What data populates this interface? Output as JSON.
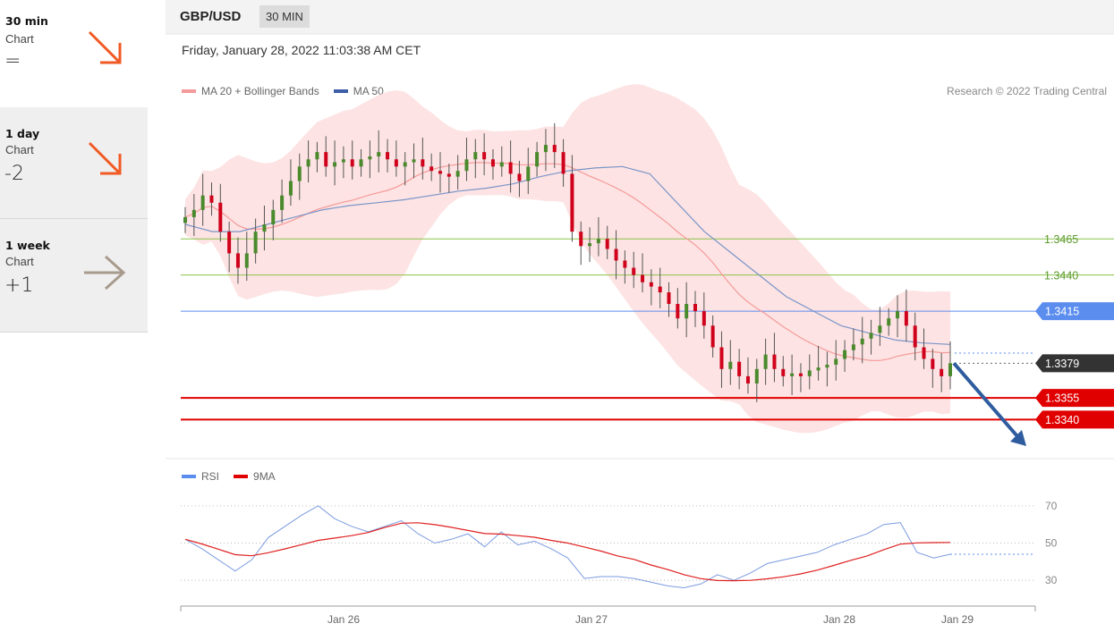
{
  "timeframes": [
    {
      "name": "30 min",
      "sub": "Chart",
      "score": "=",
      "arrow": "down",
      "arrow_color": "#f15a24"
    },
    {
      "name": "1 day",
      "sub": "Chart",
      "score": "-2",
      "arrow": "down",
      "arrow_color": "#f15a24"
    },
    {
      "name": "1 week",
      "sub": "Chart",
      "score": "+1",
      "arrow": "right",
      "arrow_color": "#a89a8c"
    }
  ],
  "header": {
    "pair": "GBP/USD",
    "timeframe": "30 MIN"
  },
  "timestamp": "Friday, January 28, 2022 11:03:38 AM CET",
  "legend": {
    "ma20": "MA 20 + Bollinger Bands",
    "ma50": "MA 50",
    "credit": "Research © 2022 Trading Central"
  },
  "rsi_legend": {
    "rsi": "RSI",
    "ma9": "9MA"
  },
  "colors": {
    "up_candle": "#4a8a2c",
    "down_candle": "#d0021b",
    "band_fill": "#fde3e3",
    "ma20": "#f59a9a",
    "ma50": "#7a95c8",
    "rsi": "#7b9be0",
    "ma9": "#e02020",
    "resistance": "#8bc34a",
    "pivot": "#5b8def",
    "support": "#e00000",
    "current": "#333333",
    "arrow": "#2e5c9e"
  },
  "chart_data": {
    "type": "candlestick",
    "x_ticks": [
      "Jan 26",
      "Jan 27",
      "Jan 28",
      "Jan 29"
    ],
    "ylim": [
      1.3318,
      1.3556
    ],
    "levels": [
      {
        "label": "1.3465",
        "value": 1.3465,
        "kind": "resistance"
      },
      {
        "label": "1.3440",
        "value": 1.344,
        "kind": "resistance"
      },
      {
        "label": "1.3415",
        "value": 1.3415,
        "kind": "pivot"
      },
      {
        "label": "1.3379",
        "value": 1.3379,
        "kind": "current"
      },
      {
        "label": "1.3355",
        "value": 1.3355,
        "kind": "support"
      },
      {
        "label": "1.3340",
        "value": 1.334,
        "kind": "support"
      }
    ],
    "close": [
      1.348,
      1.3485,
      1.3495,
      1.349,
      1.347,
      1.3455,
      1.3445,
      1.3455,
      1.347,
      1.3475,
      1.3485,
      1.3495,
      1.3505,
      1.3515,
      1.352,
      1.3525,
      1.3515,
      1.3518,
      1.352,
      1.3515,
      1.352,
      1.3522,
      1.3525,
      1.352,
      1.3515,
      1.3518,
      1.352,
      1.3515,
      1.3512,
      1.351,
      1.3508,
      1.3512,
      1.352,
      1.3525,
      1.352,
      1.3515,
      1.3518,
      1.351,
      1.3505,
      1.3515,
      1.3525,
      1.353,
      1.3525,
      1.351,
      1.347,
      1.346,
      1.3462,
      1.3465,
      1.3458,
      1.345,
      1.3445,
      1.344,
      1.3435,
      1.3432,
      1.3428,
      1.342,
      1.341,
      1.342,
      1.3415,
      1.3405,
      1.339,
      1.3375,
      1.338,
      1.337,
      1.3365,
      1.3375,
      1.3385,
      1.3375,
      1.337,
      1.3372,
      1.337,
      1.3374,
      1.3376,
      1.3378,
      1.3382,
      1.3388,
      1.3392,
      1.3396,
      1.34,
      1.3405,
      1.341,
      1.3415,
      1.3405,
      1.339,
      1.3382,
      1.3375,
      1.337,
      1.3379
    ],
    "ma50": [
      1.3475,
      1.347,
      1.347,
      1.3475,
      1.348,
      1.3485,
      1.3488,
      1.349,
      1.3492,
      1.3495,
      1.3498,
      1.35,
      1.3503,
      1.3508,
      1.3512,
      1.3514,
      1.3515,
      1.351,
      1.349,
      1.347,
      1.3455,
      1.344,
      1.3425,
      1.3415,
      1.3405,
      1.34,
      1.3395,
      1.3393,
      1.3392
    ],
    "rsi": [
      52,
      47,
      41,
      35,
      41,
      53,
      59,
      65,
      70,
      63,
      59,
      56,
      59,
      62,
      55,
      50,
      52,
      55,
      48,
      56,
      49,
      51,
      47,
      42,
      31,
      32,
      32,
      31,
      29,
      27,
      26,
      28,
      33,
      30,
      34,
      39,
      41,
      43,
      45,
      49,
      52,
      55,
      60,
      61,
      45,
      42,
      44
    ]
  }
}
